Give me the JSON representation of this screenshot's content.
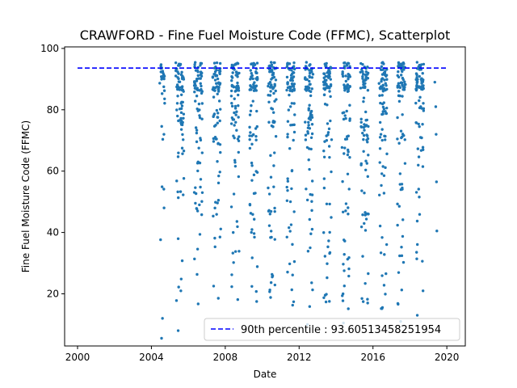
{
  "chart_data": {
    "type": "scatter",
    "title": "CRAWFORD - Fine Fuel Moisture Code (FFMC), Scatterplot",
    "xlabel": "Date",
    "ylabel": "Fine Fuel Moisture Code (FFMC)",
    "xlim": [
      1999.3,
      2021.0
    ],
    "ylim": [
      3,
      100.5
    ],
    "xticks": [
      2000,
      2004,
      2008,
      2012,
      2016,
      2020
    ],
    "yticks": [
      20,
      40,
      60,
      80,
      100
    ],
    "point_color": "#1f77b4",
    "grid": false,
    "legend": {
      "placement": "lower-right",
      "label": "90th percentile : 93.60513458251954"
    },
    "reference_line": {
      "y": 93.60513458251954,
      "x_range": [
        2000.0,
        2020.0
      ],
      "style": "dashed",
      "color": "#0000ff"
    },
    "seasons": [
      {
        "year": 2004,
        "start": 2004.45,
        "end": 2004.72
      },
      {
        "year": 2005,
        "start": 2005.32,
        "end": 2005.76
      },
      {
        "year": 2006,
        "start": 2006.32,
        "end": 2006.76
      },
      {
        "year": 2007,
        "start": 2007.32,
        "end": 2007.76
      },
      {
        "year": 2008,
        "start": 2008.32,
        "end": 2008.76
      },
      {
        "year": 2009,
        "start": 2009.32,
        "end": 2009.76
      },
      {
        "year": 2010,
        "start": 2010.32,
        "end": 2010.76
      },
      {
        "year": 2011,
        "start": 2011.32,
        "end": 2011.76
      },
      {
        "year": 2012,
        "start": 2012.32,
        "end": 2012.76
      },
      {
        "year": 2013,
        "start": 2013.32,
        "end": 2013.76
      },
      {
        "year": 2014,
        "start": 2014.32,
        "end": 2014.76
      },
      {
        "year": 2015,
        "start": 2015.32,
        "end": 2015.76
      },
      {
        "year": 2016,
        "start": 2016.32,
        "end": 2016.76
      },
      {
        "year": 2017,
        "start": 2017.32,
        "end": 2017.76
      },
      {
        "year": 2018,
        "start": 2018.32,
        "end": 2018.76
      },
      {
        "year": 2019,
        "start": 2019.32,
        "end": 2019.48
      }
    ],
    "points_per_season": 80,
    "notable_points": [
      {
        "x": 2004.55,
        "y": 5.5
      },
      {
        "x": 2004.6,
        "y": 12.0
      },
      {
        "x": 2005.45,
        "y": 8.0
      },
      {
        "x": 2012.45,
        "y": 10.0
      },
      {
        "x": 2014.4,
        "y": 10.5
      },
      {
        "x": 2017.5,
        "y": 11.0
      },
      {
        "x": 2018.4,
        "y": 13.0
      },
      {
        "x": 2019.35,
        "y": 89.0
      },
      {
        "x": 2019.4,
        "y": 81.0
      },
      {
        "x": 2019.42,
        "y": 72.0
      },
      {
        "x": 2019.44,
        "y": 56.5
      },
      {
        "x": 2019.46,
        "y": 40.5
      }
    ]
  }
}
